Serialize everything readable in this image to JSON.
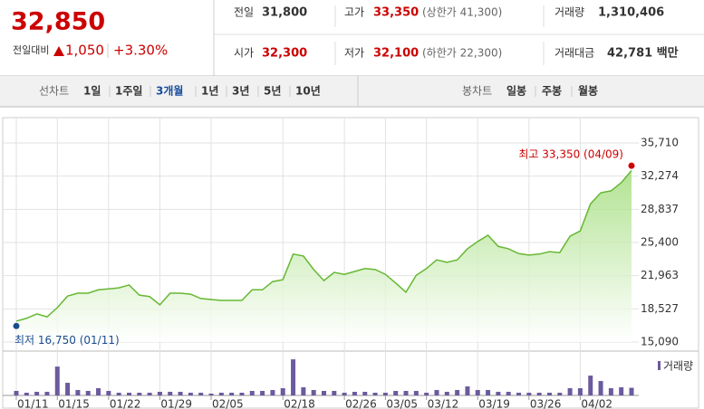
{
  "header": {
    "price": "32,850",
    "change_label": "전일대비",
    "change": "1,050",
    "change_pct": "+3.30%",
    "stats": [
      {
        "label": "전일",
        "value": "31,800"
      },
      {
        "label": "고가",
        "value": "33,350",
        "note": "(상한가 41,300)"
      },
      {
        "label": "거래량",
        "value": "1,310,406"
      },
      {
        "label": "시가",
        "value": "32,300"
      },
      {
        "label": "저가",
        "value": "32,100",
        "note": "(하한가 22,300)"
      },
      {
        "label": "거래대금",
        "value": "42,781 백만"
      }
    ]
  },
  "tabs": {
    "line_label": "선차트",
    "line": [
      "1일",
      "1주일",
      "3개월",
      "1년",
      "3년",
      "5년",
      "10년"
    ],
    "selected": 2,
    "candle_label": "봉차트",
    "candle": [
      "일봉",
      "주봉",
      "월봉"
    ]
  },
  "chart_data": {
    "type": "line",
    "area": true,
    "color": "#66b832",
    "grid": true,
    "categories": [
      "01/11",
      null,
      null,
      null,
      "01/15",
      null,
      null,
      null,
      null,
      "01/22",
      null,
      null,
      null,
      null,
      "01/29",
      null,
      null,
      null,
      null,
      "02/05",
      null,
      null,
      null,
      null,
      null,
      null,
      "02/18",
      null,
      null,
      null,
      null,
      null,
      "02/26",
      null,
      null,
      null,
      "03/05",
      null,
      null,
      null,
      "03/12",
      null,
      null,
      null,
      null,
      "03/19",
      null,
      null,
      null,
      null,
      "03/26",
      null,
      null,
      null,
      null,
      "04/02",
      null,
      null,
      null,
      null,
      null
    ],
    "values": [
      17250,
      17550,
      18000,
      17700,
      18650,
      19850,
      20150,
      20150,
      20500,
      20600,
      20700,
      21000,
      19950,
      19800,
      18950,
      20150,
      20150,
      20050,
      19600,
      19500,
      19400,
      19400,
      19400,
      20500,
      20500,
      21350,
      21550,
      24200,
      24000,
      22600,
      21450,
      22300,
      22100,
      22400,
      22700,
      22600,
      22100,
      21200,
      20250,
      22000,
      22700,
      23600,
      23350,
      23600,
      24750,
      25500,
      26150,
      25000,
      24750,
      24250,
      24100,
      24200,
      24450,
      24350,
      26050,
      26600,
      29400,
      30550,
      30750,
      31600,
      32850
    ],
    "ylim": [
      15090,
      35710
    ],
    "yticks": [
      {
        "value": 15090,
        "label": "15,090"
      },
      {
        "value": 18527,
        "label": "18,527"
      },
      {
        "value": 21963,
        "label": "21,963"
      },
      {
        "value": 25400,
        "label": "25,400"
      },
      {
        "value": 28837,
        "label": "28,837"
      },
      {
        "value": 32274,
        "label": "32,274"
      },
      {
        "value": 35710,
        "label": "35,710"
      }
    ],
    "annotations": [
      {
        "text": "최고 33,350 (04/09)",
        "value": 33350,
        "index": 60,
        "color": "#cc0000"
      },
      {
        "text": "최저 16,750 (01/11)",
        "value": 16750,
        "index": 0,
        "color": "#1a4d8f"
      }
    ],
    "volume": {
      "name": "거래량",
      "color": "#6b5a9e",
      "ylim": [
        0,
        7000000
      ],
      "values": [
        775000,
        465000,
        620000,
        620000,
        4960000,
        2170000,
        930000,
        775000,
        1240000,
        775000,
        465000,
        465000,
        465000,
        465000,
        620000,
        620000,
        620000,
        465000,
        465000,
        310000,
        465000,
        465000,
        465000,
        775000,
        775000,
        930000,
        1240000,
        6200000,
        1395000,
        930000,
        775000,
        775000,
        465000,
        620000,
        620000,
        465000,
        465000,
        775000,
        775000,
        775000,
        465000,
        930000,
        620000,
        930000,
        1550000,
        930000,
        930000,
        620000,
        620000,
        465000,
        465000,
        465000,
        465000,
        465000,
        1240000,
        1240000,
        3410000,
        2480000,
        1240000,
        1395000,
        1310406
      ]
    }
  }
}
